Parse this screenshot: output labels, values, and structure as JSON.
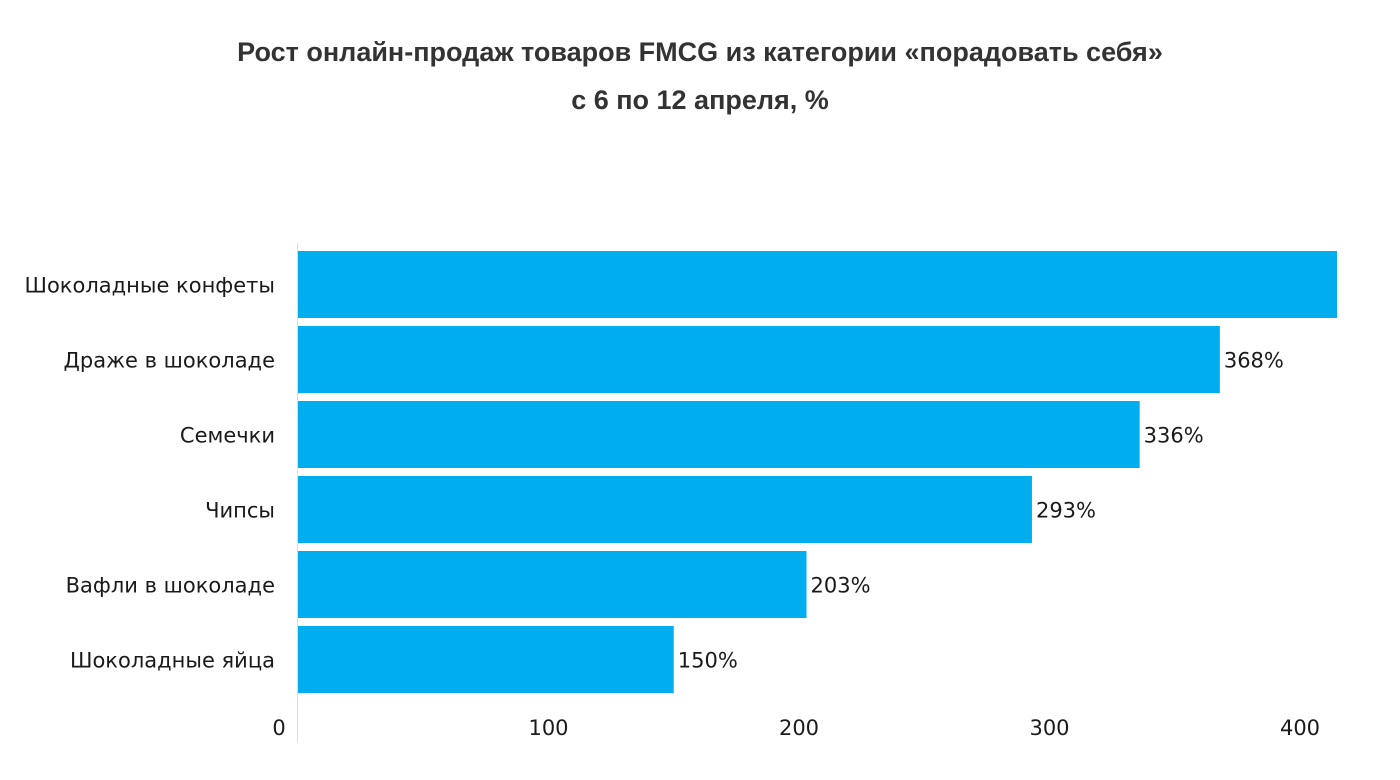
{
  "chart_data": {
    "type": "bar",
    "orientation": "horizontal",
    "title": "Рост онлайн-продаж товаров FMCG из категории «порадовать себя»",
    "subtitle": "с 6 по 12 апреля, %",
    "categories": [
      "Шоколадные конфеты",
      "Драже в шоколаде",
      "Семечки",
      "Чипсы",
      "Вафли в шоколаде",
      "Шоколадные яйца"
    ],
    "values": [
      415,
      368,
      336,
      293,
      203,
      150
    ],
    "data_labels": [
      "",
      "368%",
      "336%",
      "293%",
      "203%",
      "150%"
    ],
    "xlim": [
      0,
      400
    ],
    "xticks": [
      0,
      100,
      200,
      300,
      400
    ],
    "xtick_labels": [
      "0",
      "100",
      "200",
      "300",
      "400"
    ],
    "grid": false,
    "legend": "none",
    "bar_color": "#00AEEF",
    "axis_color": "#dddddd"
  }
}
